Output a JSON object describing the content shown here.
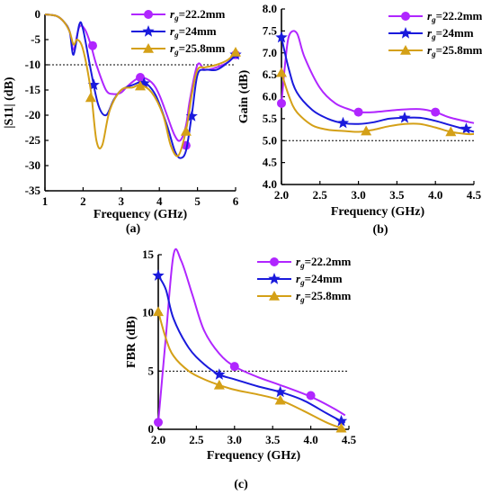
{
  "chart_data": [
    {
      "type": "line",
      "panel": "(a)",
      "xlabel": "Frequency (GHz)",
      "ylabel": "|S11| (dB)",
      "xlim": [
        1,
        6
      ],
      "ylim": [
        -35,
        0
      ],
      "xticks": [
        1,
        2,
        3,
        4,
        5,
        6
      ],
      "yticks": [
        0,
        -5,
        -10,
        -15,
        -20,
        -25,
        -30,
        -35
      ],
      "reference_line": -10,
      "legend_position": "top-right",
      "series": [
        {
          "name": "rg=22.2mm",
          "legend_prefix": "r",
          "legend_sub": "g",
          "legend_value": "=22.2mm",
          "color": "#b026ff",
          "marker": "circle",
          "x": [
            1.0,
            1.3,
            1.5,
            1.65,
            1.75,
            1.9,
            2.05,
            2.2,
            2.35,
            2.6,
            2.8,
            3.0,
            3.2,
            3.5,
            3.8,
            4.0,
            4.2,
            4.4,
            4.55,
            4.7,
            4.8,
            5.0,
            5.2,
            5.5,
            5.8,
            6.0
          ],
          "y": [
            0,
            -0.3,
            -1.5,
            -3.5,
            -7.0,
            -2.5,
            -3.0,
            -6.0,
            -10.0,
            -15.0,
            -15.8,
            -15.5,
            -14.0,
            -12.5,
            -13.5,
            -16.0,
            -20.0,
            -24.0,
            -25.0,
            -22.0,
            -17.0,
            -10.0,
            -11.0,
            -10.5,
            -9.5,
            -8.0
          ],
          "markers_x": [
            2.25,
            3.5,
            4.7,
            6.0
          ],
          "markers_y": [
            -6.2,
            -12.5,
            -26.0,
            -8.0
          ]
        },
        {
          "name": "rg=24mm",
          "legend_prefix": "r",
          "legend_sub": "g",
          "legend_value": "=24mm",
          "color": "#1a1adc",
          "marker": "star",
          "x": [
            1.0,
            1.3,
            1.5,
            1.65,
            1.75,
            1.9,
            2.0,
            2.2,
            2.4,
            2.6,
            2.8,
            3.0,
            3.3,
            3.6,
            3.9,
            4.2,
            4.4,
            4.55,
            4.7,
            4.85,
            5.0,
            5.2,
            5.5,
            5.8,
            6.0
          ],
          "y": [
            0,
            -0.3,
            -1.5,
            -3.5,
            -8.0,
            -2.0,
            -3.0,
            -11.0,
            -18.0,
            -20.0,
            -17.0,
            -15.0,
            -14.0,
            -13.5,
            -16.0,
            -22.0,
            -27.0,
            -28.5,
            -27.0,
            -20.0,
            -12.0,
            -11.0,
            -11.0,
            -9.5,
            -8.0
          ],
          "markers_x": [
            2.28,
            3.6,
            4.85,
            6.0
          ],
          "markers_y": [
            -14.0,
            -13.7,
            -20.2,
            -8.0
          ]
        },
        {
          "name": "rg=25.8mm",
          "legend_prefix": "r",
          "legend_sub": "g",
          "legend_value": "=25.8mm",
          "color": "#d4a017",
          "marker": "triangle",
          "x": [
            1.0,
            1.3,
            1.5,
            1.65,
            1.75,
            1.85,
            2.0,
            2.2,
            2.35,
            2.5,
            2.7,
            3.0,
            3.3,
            3.5,
            3.8,
            4.1,
            4.3,
            4.5,
            4.7,
            4.85,
            5.0,
            5.2,
            5.5,
            5.8,
            6.0
          ],
          "y": [
            0,
            -0.3,
            -1.5,
            -3.5,
            -6.0,
            -5.0,
            -7.0,
            -15.0,
            -25.0,
            -26.0,
            -19.0,
            -15.0,
            -14.5,
            -14.0,
            -15.5,
            -20.0,
            -26.0,
            -28.0,
            -23.0,
            -16.0,
            -11.0,
            -10.5,
            -10.0,
            -9.0,
            -7.5
          ],
          "markers_x": [
            2.2,
            3.5,
            4.7,
            6.0
          ],
          "markers_y": [
            -16.5,
            -14.2,
            -23.2,
            -7.5
          ]
        }
      ]
    },
    {
      "type": "line",
      "panel": "(b)",
      "xlabel": "Frequency (GHz)",
      "ylabel": "Gain (dB)",
      "xlim": [
        2.0,
        4.5
      ],
      "ylim": [
        4.0,
        8.0
      ],
      "xticks": [
        2.0,
        2.5,
        3.0,
        3.5,
        4.0,
        4.5
      ],
      "yticks": [
        4.0,
        4.5,
        5.0,
        5.5,
        6.0,
        6.5,
        7.0,
        7.5,
        8.0
      ],
      "reference_line": 5.0,
      "legend_position": "top-right",
      "series": [
        {
          "name": "rg=22.2mm",
          "legend_prefix": "r",
          "legend_sub": "g",
          "legend_value": "=22.2mm",
          "color": "#b026ff",
          "marker": "circle",
          "x": [
            2.0,
            2.05,
            2.1,
            2.2,
            2.3,
            2.5,
            2.7,
            2.9,
            3.0,
            3.2,
            3.5,
            3.8,
            4.0,
            4.2,
            4.5
          ],
          "y": [
            5.85,
            6.8,
            7.4,
            7.45,
            6.9,
            6.2,
            5.85,
            5.7,
            5.65,
            5.65,
            5.7,
            5.72,
            5.65,
            5.52,
            5.4
          ],
          "markers_x": [
            2.0,
            3.0,
            4.0
          ],
          "markers_y": [
            5.85,
            5.65,
            5.65
          ]
        },
        {
          "name": "rg=24mm",
          "legend_prefix": "r",
          "legend_sub": "g",
          "legend_value": "=24mm",
          "color": "#1a1adc",
          "marker": "star",
          "x": [
            2.0,
            2.1,
            2.2,
            2.4,
            2.6,
            2.8,
            3.0,
            3.2,
            3.4,
            3.6,
            3.8,
            4.0,
            4.2,
            4.4,
            4.5
          ],
          "y": [
            7.35,
            6.6,
            6.1,
            5.7,
            5.5,
            5.4,
            5.38,
            5.42,
            5.5,
            5.52,
            5.52,
            5.45,
            5.35,
            5.25,
            5.2
          ],
          "markers_x": [
            2.0,
            2.8,
            3.6,
            4.4
          ],
          "markers_y": [
            7.35,
            5.4,
            5.52,
            5.27
          ]
        },
        {
          "name": "rg=25.8mm",
          "legend_prefix": "r",
          "legend_sub": "g",
          "legend_value": "=25.8mm",
          "color": "#d4a017",
          "marker": "triangle",
          "x": [
            2.0,
            2.1,
            2.2,
            2.4,
            2.6,
            2.8,
            3.0,
            3.2,
            3.4,
            3.6,
            3.8,
            4.0,
            4.2,
            4.4,
            4.5
          ],
          "y": [
            6.55,
            6.0,
            5.65,
            5.35,
            5.25,
            5.22,
            5.2,
            5.25,
            5.33,
            5.38,
            5.38,
            5.3,
            5.2,
            5.15,
            5.15
          ],
          "markers_x": [
            2.0,
            3.1,
            4.2
          ],
          "markers_y": [
            6.55,
            5.22,
            5.2
          ]
        }
      ]
    },
    {
      "type": "line",
      "panel": "(c)",
      "xlabel": "Frequency (GHz)",
      "ylabel": "FBR (dB)",
      "xlim": [
        2.0,
        4.5
      ],
      "ylim": [
        0,
        15
      ],
      "xticks": [
        2.0,
        2.5,
        3.0,
        3.5,
        4.0,
        4.5
      ],
      "yticks": [
        0,
        5,
        10,
        15
      ],
      "reference_line": 5,
      "legend_position": "top-right",
      "series": [
        {
          "name": "rg=22.2mm",
          "legend_prefix": "r",
          "legend_sub": "g",
          "legend_value": "=22.2mm",
          "color": "#b026ff",
          "marker": "circle",
          "x": [
            2.0,
            2.1,
            2.2,
            2.3,
            2.45,
            2.6,
            2.8,
            3.0,
            3.3,
            3.6,
            4.0,
            4.3,
            4.45
          ],
          "y": [
            0.6,
            8.0,
            15.0,
            14.5,
            11.5,
            8.5,
            6.5,
            5.4,
            4.5,
            3.8,
            2.8,
            1.8,
            1.2
          ],
          "markers_x": [
            2.0,
            3.0,
            4.0
          ],
          "markers_y": [
            0.6,
            5.4,
            2.9
          ]
        },
        {
          "name": "rg=24mm",
          "legend_prefix": "r",
          "legend_sub": "g",
          "legend_value": "=24mm",
          "color": "#1a1adc",
          "marker": "star",
          "x": [
            2.0,
            2.1,
            2.2,
            2.4,
            2.6,
            2.8,
            3.0,
            3.3,
            3.6,
            3.9,
            4.2,
            4.4,
            4.45
          ],
          "y": [
            13.2,
            12.0,
            9.5,
            7.0,
            5.6,
            4.7,
            4.3,
            3.7,
            3.2,
            2.5,
            1.4,
            0.7,
            0.6
          ],
          "markers_x": [
            2.0,
            2.8,
            3.6,
            4.4
          ],
          "markers_y": [
            13.2,
            4.7,
            3.2,
            0.7
          ]
        },
        {
          "name": "rg=25.8mm",
          "legend_prefix": "r",
          "legend_sub": "g",
          "legend_value": "=25.8mm",
          "color": "#d4a017",
          "marker": "triangle",
          "x": [
            2.0,
            2.1,
            2.2,
            2.4,
            2.6,
            2.8,
            3.0,
            3.3,
            3.6,
            3.9,
            4.2,
            4.4,
            4.45
          ],
          "y": [
            10.1,
            7.8,
            6.3,
            5.0,
            4.3,
            3.8,
            3.4,
            3.0,
            2.5,
            1.6,
            0.6,
            0.1,
            0.0
          ],
          "markers_x": [
            2.0,
            2.8,
            3.6,
            4.4
          ],
          "markers_y": [
            10.1,
            3.8,
            2.5,
            0.1
          ]
        }
      ]
    }
  ]
}
